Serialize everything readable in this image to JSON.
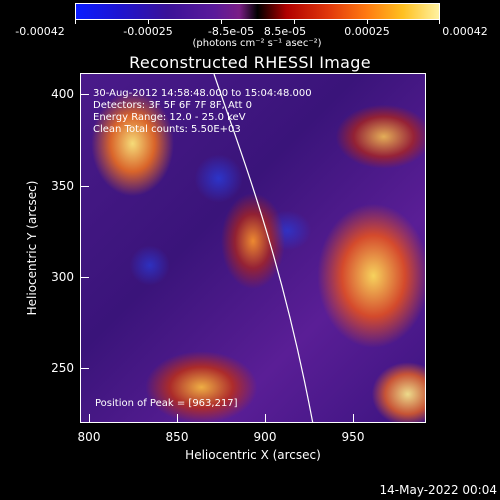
{
  "colorbar": {
    "tick_labels": [
      "-0.00042",
      "-0.00025",
      "-8.5e-05",
      "8.5e-05",
      "0.00025",
      "0.00042"
    ],
    "units": "(photons cm⁻² s⁻¹ asec⁻²)"
  },
  "title": "Reconstructed RHESSI Image",
  "info": {
    "time_range": "30-Aug-2012 14:58:48.000 to 15:04:48.000",
    "detectors": "Detectors: 3F 5F 6F 7F 8F, Att 0",
    "energy_range": "Energy Range: 12.0 - 25.0 keV",
    "method": "Clean    Total counts: 5.50E+03"
  },
  "peak_label": "Position of Peak = [963,217]",
  "x_axis": {
    "title": "Heliocentric X (arcsec)",
    "ticks": [
      "800",
      "850",
      "900",
      "950"
    ]
  },
  "y_axis": {
    "title": "Heliocentric Y (arcsec)",
    "ticks": [
      "400",
      "350",
      "300",
      "250"
    ]
  },
  "timestamp": "14-May-2022 00:04"
}
